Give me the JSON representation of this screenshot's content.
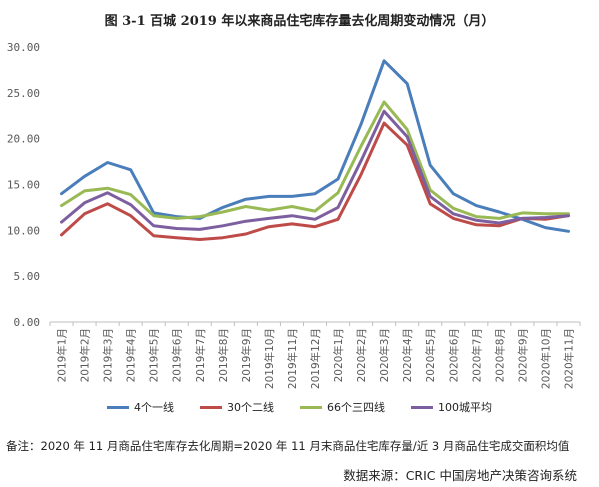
{
  "title": "图 3-1 百城 2019 年以来商品住宅库存量去化周期变动情况（月）",
  "note": "备注：2020 年 11 月商品住宅库存去化周期=2020 年 11 月末商品住宅库存量/近 3 月商品住宅成交面积均值",
  "source": "数据来源：CRIC 中国房地产决策咨询系统",
  "colors": {
    "tier1": "#4a7ebb",
    "tier2": "#be4b48",
    "tier3_4": "#98b954",
    "all100": "#7d5fa0",
    "axis": "#bfbfbf",
    "text": "#595959"
  },
  "chart_data": {
    "type": "line",
    "categories": [
      "2019年1月",
      "2019年2月",
      "2019年3月",
      "2019年4月",
      "2019年5月",
      "2019年6月",
      "2019年7月",
      "2019年8月",
      "2019年9月",
      "2019年10月",
      "2019年11月",
      "2019年12月",
      "2020年1月",
      "2020年2月",
      "2020年3月",
      "2020年4月",
      "2020年5月",
      "2020年6月",
      "2020年7月",
      "2020年8月",
      "2020年9月",
      "2020年10月",
      "2020年11月"
    ],
    "y_ticks": [
      "0.00",
      "5.00",
      "10.00",
      "15.00",
      "20.00",
      "25.00",
      "30.00"
    ],
    "ylim": [
      0,
      30
    ],
    "grid": false,
    "legend_position": "bottom",
    "series": [
      {
        "name": "4个一线",
        "color_key": "tier1",
        "values": [
          14.0,
          15.9,
          17.4,
          16.6,
          11.9,
          11.5,
          11.3,
          12.5,
          13.4,
          13.7,
          13.7,
          14.0,
          15.6,
          21.6,
          28.5,
          26.0,
          17.1,
          14.0,
          12.7,
          12.0,
          11.2,
          10.3,
          9.9
        ]
      },
      {
        "name": "30个二线",
        "color_key": "tier2",
        "values": [
          9.5,
          11.8,
          12.9,
          11.6,
          9.4,
          9.2,
          9.0,
          9.2,
          9.6,
          10.4,
          10.7,
          10.4,
          11.2,
          16.1,
          21.7,
          19.3,
          12.9,
          11.3,
          10.6,
          10.5,
          11.3,
          11.2,
          11.6
        ]
      },
      {
        "name": "66个三四线",
        "color_key": "tier3_4",
        "values": [
          12.7,
          14.3,
          14.6,
          13.9,
          11.6,
          11.3,
          11.5,
          12.0,
          12.6,
          12.2,
          12.6,
          12.1,
          14.1,
          19.2,
          24.0,
          21.0,
          14.4,
          12.4,
          11.5,
          11.3,
          11.9,
          11.8,
          11.8
        ]
      },
      {
        "name": "100城平均",
        "color_key": "all100",
        "values": [
          10.9,
          13.0,
          14.1,
          12.8,
          10.5,
          10.2,
          10.1,
          10.5,
          11.0,
          11.3,
          11.6,
          11.2,
          12.5,
          17.6,
          23.0,
          20.2,
          13.7,
          11.8,
          11.1,
          10.8,
          11.3,
          11.4,
          11.6
        ]
      }
    ]
  }
}
